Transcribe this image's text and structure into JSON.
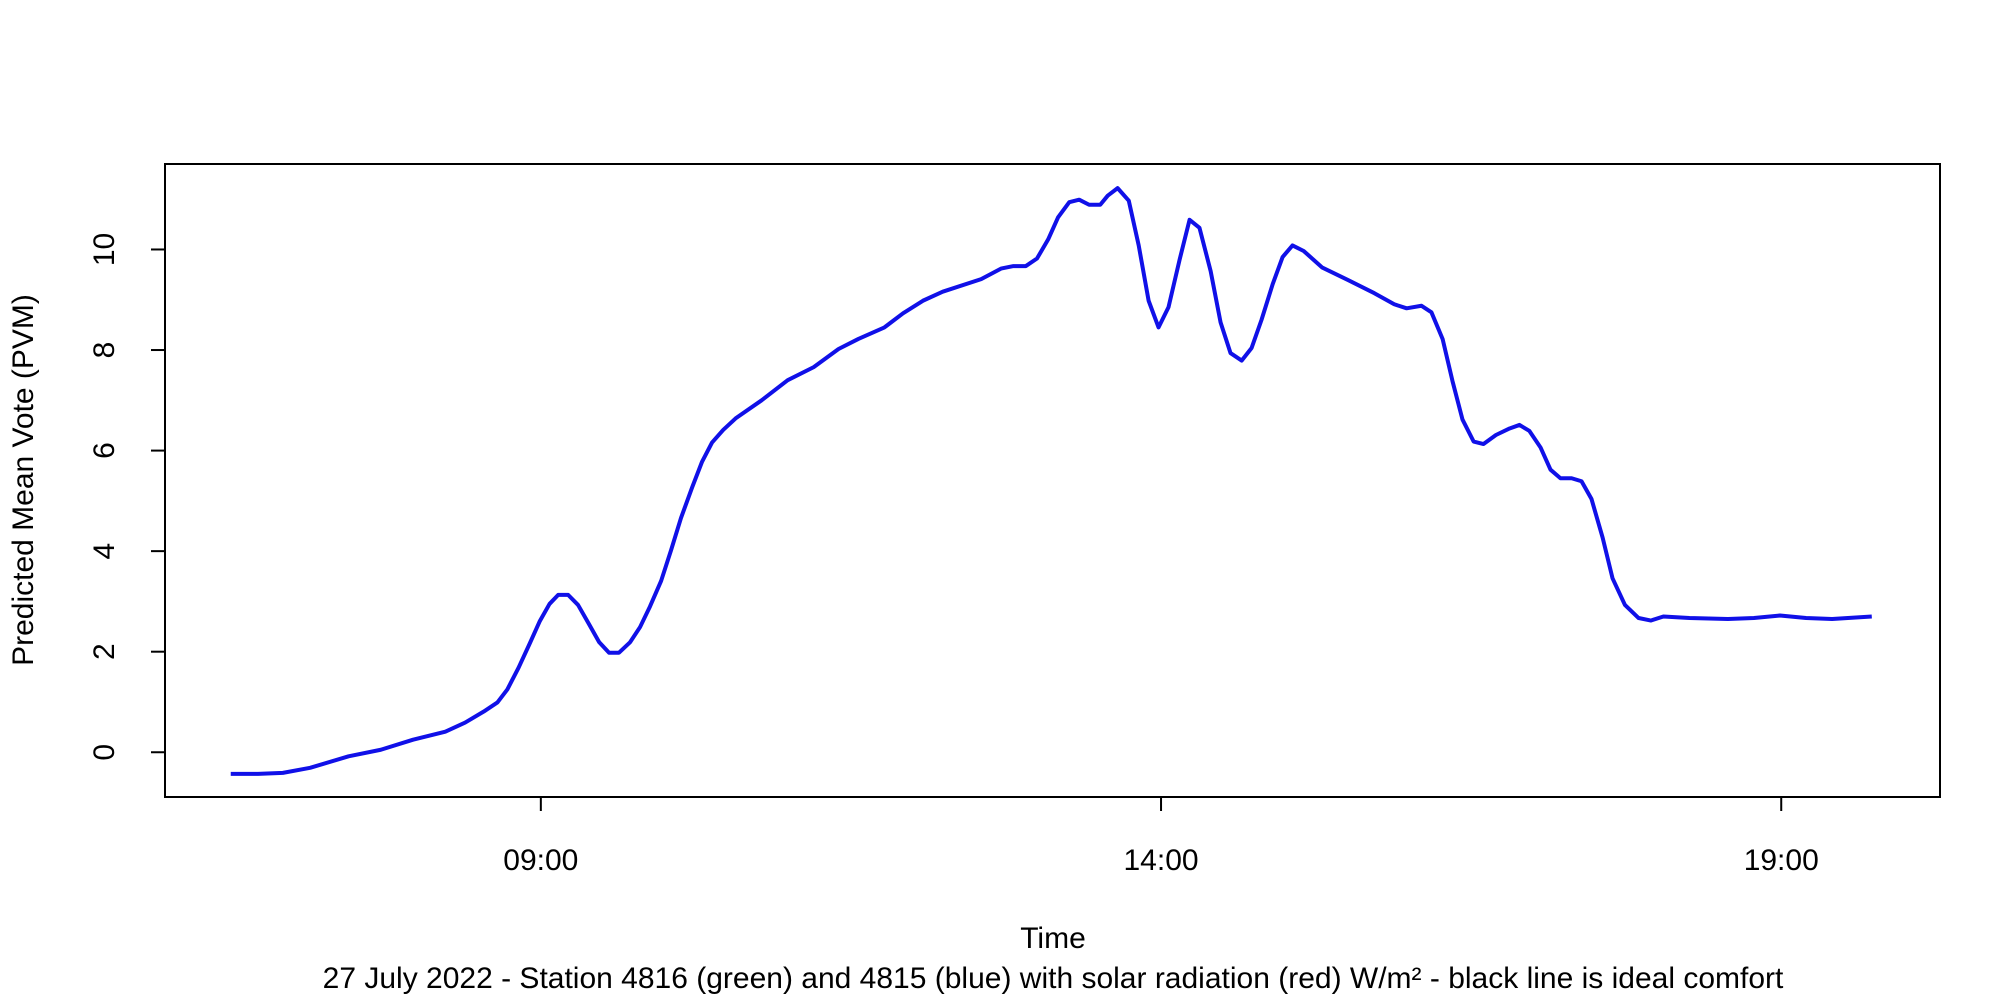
{
  "chart_data": {
    "type": "line",
    "xlabel": "Time",
    "ylabel": "Predicted Mean Vote (PVM)",
    "subtitle": "27 July 2022 - Station 4816 (green) and 4815 (blue) with solar radiation (red) W/m² - black line is ideal comfort",
    "xlim": [
      5.97,
      20.28
    ],
    "xticks": [
      {
        "value": 9,
        "label": "09:00"
      },
      {
        "value": 14,
        "label": "14:00"
      },
      {
        "value": 19,
        "label": "19:00"
      }
    ],
    "ylim": [
      -0.89,
      11.7
    ],
    "yticks": [
      0,
      2,
      4,
      6,
      8,
      10
    ],
    "grid": false,
    "x": [
      6.5,
      6.72,
      6.92,
      7.14,
      7.45,
      7.71,
      7.97,
      8.23,
      8.39,
      8.54,
      8.65,
      8.73,
      8.82,
      8.91,
      8.99,
      9.07,
      9.14,
      9.22,
      9.3,
      9.39,
      9.47,
      9.55,
      9.63,
      9.72,
      9.8,
      9.88,
      9.97,
      10.05,
      10.13,
      10.22,
      10.3,
      10.38,
      10.47,
      10.57,
      10.78,
      10.99,
      11.2,
      11.4,
      11.56,
      11.77,
      11.92,
      12.08,
      12.24,
      12.55,
      12.71,
      12.81,
      12.91,
      13.0,
      13.09,
      13.17,
      13.26,
      13.34,
      13.42,
      13.51,
      13.57,
      13.65,
      13.74,
      13.82,
      13.9,
      13.98,
      14.06,
      14.15,
      14.23,
      14.31,
      14.4,
      14.48,
      14.56,
      14.65,
      14.73,
      14.81,
      14.9,
      14.98,
      15.06,
      15.15,
      15.3,
      15.51,
      15.72,
      15.88,
      15.98,
      16.1,
      16.18,
      16.27,
      16.35,
      16.43,
      16.52,
      16.6,
      16.7,
      16.81,
      16.89,
      16.97,
      17.06,
      17.14,
      17.22,
      17.31,
      17.39,
      17.47,
      17.56,
      17.64,
      17.74,
      17.85,
      17.95,
      18.05,
      18.26,
      18.57,
      18.78,
      18.99,
      19.2,
      19.41,
      19.73
    ],
    "series": [
      {
        "name": "4815",
        "color": "#1010e8",
        "values": [
          -0.43,
          -0.43,
          -0.41,
          -0.31,
          -0.08,
          0.05,
          0.25,
          0.41,
          0.59,
          0.81,
          0.99,
          1.25,
          1.68,
          2.16,
          2.6,
          2.95,
          3.13,
          3.13,
          2.93,
          2.54,
          2.19,
          1.98,
          1.98,
          2.19,
          2.49,
          2.9,
          3.41,
          4.02,
          4.66,
          5.27,
          5.78,
          6.16,
          6.41,
          6.64,
          7.0,
          7.4,
          7.66,
          8.02,
          8.22,
          8.45,
          8.73,
          8.98,
          9.16,
          9.41,
          9.62,
          9.67,
          9.67,
          9.82,
          10.2,
          10.64,
          10.94,
          10.99,
          10.89,
          10.89,
          11.07,
          11.22,
          10.97,
          10.08,
          8.98,
          8.45,
          8.85,
          9.8,
          10.59,
          10.43,
          9.57,
          8.55,
          7.94,
          7.79,
          8.04,
          8.6,
          9.31,
          9.85,
          10.08,
          9.97,
          9.64,
          9.39,
          9.13,
          8.91,
          8.83,
          8.88,
          8.75,
          8.22,
          7.38,
          6.62,
          6.18,
          6.13,
          6.31,
          6.44,
          6.51,
          6.39,
          6.06,
          5.62,
          5.45,
          5.45,
          5.39,
          5.04,
          4.27,
          3.46,
          2.93,
          2.67,
          2.62,
          2.7,
          2.67,
          2.65,
          2.67,
          2.72,
          2.67,
          2.65,
          2.7
        ]
      }
    ]
  }
}
